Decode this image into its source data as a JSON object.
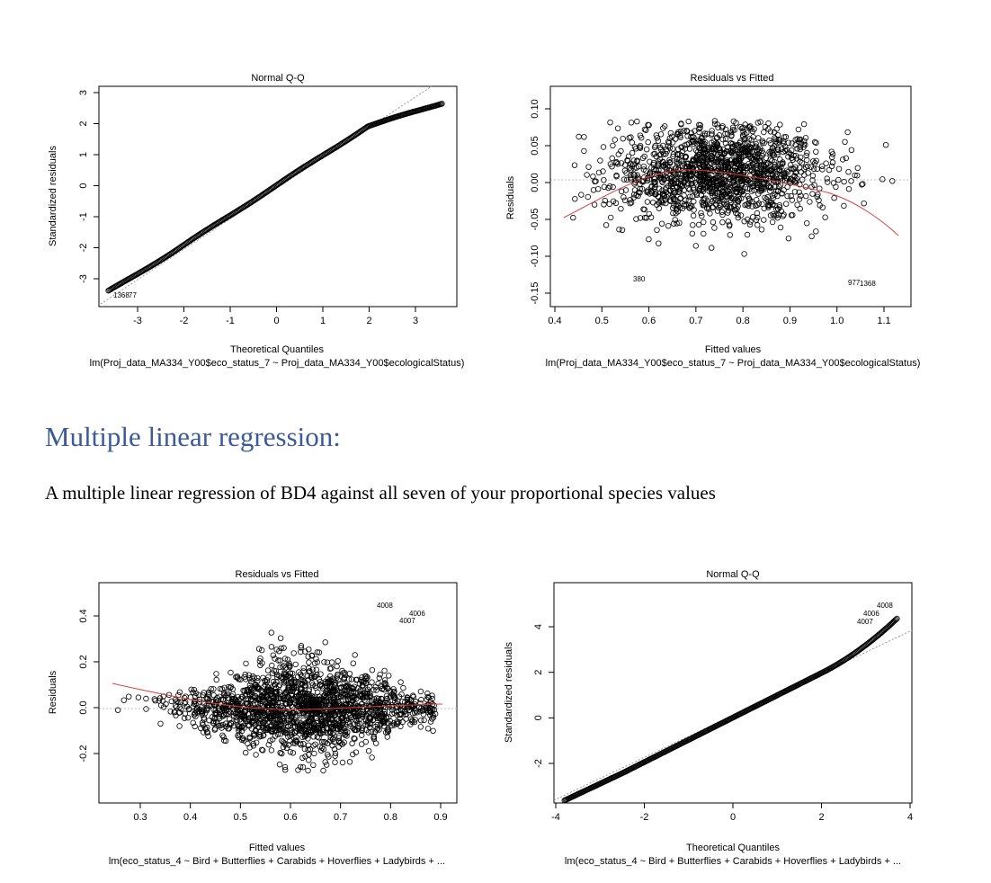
{
  "section": {
    "heading": "Multiple linear regression:",
    "body": "A multiple linear regression of BD4 against all seven of your proportional species values"
  },
  "plots": [
    {
      "title": "Normal Q-Q",
      "xlabel": "Theoretical Quantiles",
      "ylabel": "Standardized residuals",
      "subtitle": "lm(Proj_data_MA334_Y00$eco_status_7 ~ Proj_data_MA334_Y00$ecologicalStatus)",
      "xticks": [
        "-3",
        "-2",
        "-1",
        "0",
        "1",
        "2",
        "3"
      ],
      "yticks": [
        "-3",
        "-2",
        "-1",
        "0",
        "1",
        "2",
        "3"
      ],
      "point_labels": [
        "1368",
        "77"
      ]
    },
    {
      "title": "Residuals vs Fitted",
      "xlabel": "Fitted values",
      "ylabel": "Residuals",
      "subtitle": "lm(Proj_data_MA334_Y00$eco_status_7 ~ Proj_data_MA334_Y00$ecologicalStatus)",
      "xticks": [
        "0.4",
        "0.5",
        "0.6",
        "0.7",
        "0.8",
        "0.9",
        "1.0",
        "1.1"
      ],
      "yticks": [
        "-0.15",
        "-0.10",
        "-0.05",
        "0.00",
        "0.05",
        "0.10"
      ],
      "point_labels": [
        "380",
        "977",
        "1368"
      ]
    },
    {
      "title": "Residuals vs Fitted",
      "xlabel": "Fitted values",
      "ylabel": "Residuals",
      "subtitle": "lm(eco_status_4 ~ Bird + Butterflies + Carabids + Hoverflies + Ladybirds +  ...",
      "xticks": [
        "0.3",
        "0.4",
        "0.5",
        "0.6",
        "0.7",
        "0.8",
        "0.9"
      ],
      "yticks": [
        "-0.2",
        "0.0",
        "0.2",
        "0.4"
      ],
      "point_labels": [
        "4008",
        "4006",
        "4007"
      ]
    },
    {
      "title": "Normal Q-Q",
      "xlabel": "Theoretical Quantiles",
      "ylabel": "Standardized residuals",
      "subtitle": "lm(eco_status_4 ~ Bird + Butterflies + Carabids + Hoverflies + Ladybirds +  ...",
      "xticks": [
        "-4",
        "-2",
        "0",
        "2",
        "4"
      ],
      "yticks": [
        "-2",
        "0",
        "2",
        "4"
      ],
      "point_labels": [
        "4008",
        "4006",
        "4007"
      ]
    }
  ],
  "chart_data": [
    {
      "type": "scatter",
      "title": "Normal Q-Q",
      "xlabel": "Theoretical Quantiles",
      "ylabel": "Standardized residuals",
      "xlim": [
        -3.7,
        3.7
      ],
      "ylim": [
        -3.8,
        3.3
      ],
      "reference_line": {
        "slope": 0.97,
        "intercept": 0
      },
      "grid": false,
      "series": [
        {
          "x_range": [
            -3.6,
            3.6
          ],
          "y_range": [
            -3.55,
            2.5
          ],
          "shape": "normal-qq-light-tails"
        }
      ],
      "labeled_points": [
        {
          "label": "1368",
          "x": -3.35,
          "y": -3.52
        },
        {
          "label": "77",
          "x": -3.15,
          "y": -3.48
        }
      ]
    },
    {
      "type": "scatter",
      "title": "Residuals vs Fitted",
      "xlabel": "Fitted values",
      "ylabel": "Residuals",
      "xlim": [
        0.4,
        1.15
      ],
      "ylim": [
        -0.165,
        0.11
      ],
      "reference_line": {
        "y": 0
      },
      "grid": false,
      "smoother": [
        {
          "x": 0.43,
          "y": -0.055
        },
        {
          "x": 0.5,
          "y": -0.032
        },
        {
          "x": 0.6,
          "y": -0.01
        },
        {
          "x": 0.7,
          "y": 0.008
        },
        {
          "x": 0.74,
          "y": 0.012
        },
        {
          "x": 0.8,
          "y": 0.005
        },
        {
          "x": 0.9,
          "y": -0.015
        },
        {
          "x": 1.0,
          "y": -0.04
        },
        {
          "x": 1.13,
          "y": -0.078
        }
      ],
      "labeled_points": [
        {
          "label": "380",
          "x": 0.565,
          "y": -0.132
        },
        {
          "label": "977",
          "x": 1.08,
          "y": -0.131
        },
        {
          "label": "1368",
          "x": 1.07,
          "y": -0.138
        }
      ]
    },
    {
      "type": "scatter",
      "title": "Residuals vs Fitted",
      "xlabel": "Fitted values",
      "ylabel": "Residuals",
      "xlim": [
        0.23,
        0.92
      ],
      "ylim": [
        -0.32,
        0.5
      ],
      "reference_line": {
        "y": 0
      },
      "grid": false,
      "smoother": [
        {
          "x": 0.25,
          "y": 0.105
        },
        {
          "x": 0.3,
          "y": 0.085
        },
        {
          "x": 0.4,
          "y": 0.035
        },
        {
          "x": 0.5,
          "y": 0.005
        },
        {
          "x": 0.6,
          "y": -0.008
        },
        {
          "x": 0.7,
          "y": 0.0
        },
        {
          "x": 0.8,
          "y": 0.012
        },
        {
          "x": 0.88,
          "y": 0.018
        }
      ],
      "labeled_points": [
        {
          "label": "4008",
          "x": 0.813,
          "y": 0.44
        },
        {
          "label": "4006",
          "x": 0.868,
          "y": 0.405
        },
        {
          "label": "4007",
          "x": 0.858,
          "y": 0.37
        }
      ]
    },
    {
      "type": "scatter",
      "title": "Normal Q-Q",
      "xlabel": "Theoretical Quantiles",
      "ylabel": "Standardized residuals",
      "xlim": [
        -4.0,
        4.0
      ],
      "ylim": [
        -3.6,
        5.6
      ],
      "reference_line": {
        "slope": 1.0,
        "intercept": 0
      },
      "grid": false,
      "series": [
        {
          "x_range": [
            -3.8,
            3.7
          ],
          "y_range": [
            -3.3,
            4.95
          ],
          "shape": "normal-qq-heavy-right-tail"
        }
      ],
      "labeled_points": [
        {
          "label": "4008",
          "x": 3.7,
          "y": 4.95
        },
        {
          "label": "4006",
          "x": 3.3,
          "y": 4.55
        },
        {
          "label": "4007",
          "x": 3.15,
          "y": 4.2
        }
      ]
    }
  ]
}
